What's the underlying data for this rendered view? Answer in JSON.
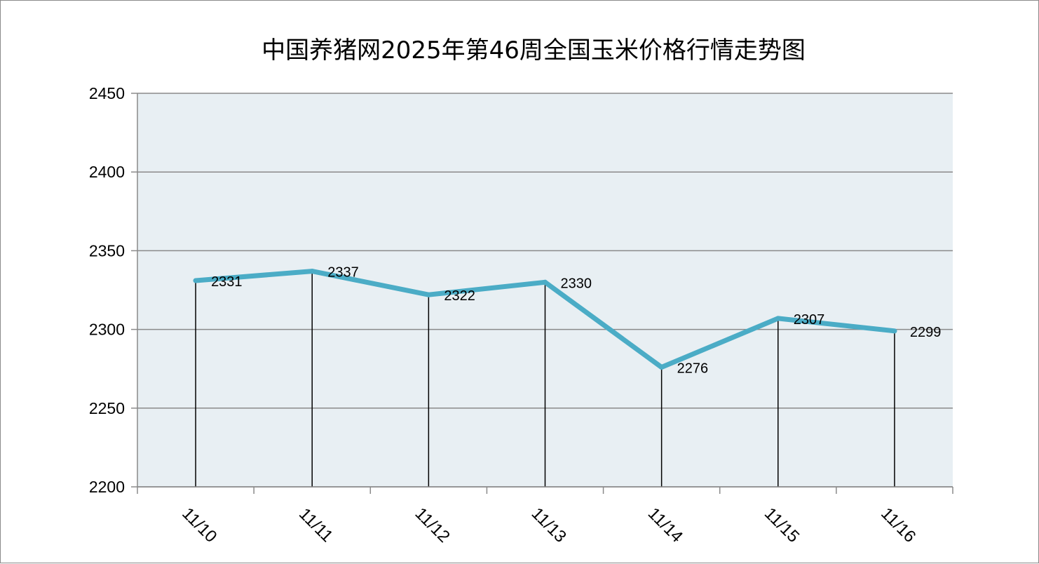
{
  "chart_data": {
    "type": "line",
    "title": "中国养猪网2025年第46周全国玉米价格行情走势图",
    "xlabel": "",
    "ylabel": "",
    "categories": [
      "11/10",
      "11/11",
      "11/12",
      "11/13",
      "11/14",
      "11/15",
      "11/16"
    ],
    "series": [
      {
        "values": [
          2331,
          2337,
          2322,
          2330,
          2276,
          2307,
          2299
        ]
      }
    ],
    "ylim": [
      2200,
      2450
    ],
    "yticks": [
      2200,
      2250,
      2300,
      2350,
      2400,
      2450
    ],
    "ytick_labels": [
      "2200",
      "2250",
      "2300",
      "2350",
      "2400",
      "2450"
    ],
    "data_labels": [
      "2331",
      "2337",
      "2322",
      "2330",
      "2276",
      "2307",
      "2299"
    ],
    "grid": true,
    "drop_lines": true,
    "legend": "none",
    "colors": {
      "line": "#4bacc6",
      "plot_background": "#e8eff3",
      "gridline": "#8a8a8a",
      "drop_line": "#000000"
    }
  }
}
